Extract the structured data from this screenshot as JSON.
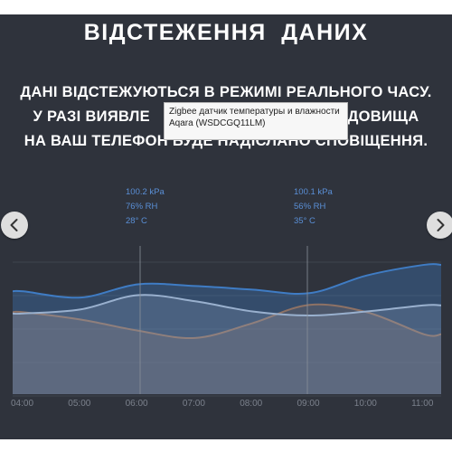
{
  "page": {
    "heading": "ВІДСТЕЖЕННЯ ДАНИХ",
    "description_lines": [
      "ДАНІ ВІДСТЕЖУЮТЬСЯ В РЕЖИМІ РЕАЛЬНОГО ЧАСУ.",
      "У РАЗІ ВИЯВЛЕ",
      "РЕДОВИЩА",
      "НА ВАШ ТЕЛЕФОН БУДЕ НАДІСЛАНО СПОВІЩЕННЯ."
    ]
  },
  "tooltip": {
    "line1": "Zigbee датчик температуры и влажности",
    "line2": "Aqara (WSDCGQ11LM)"
  },
  "readouts": [
    {
      "time": "06:00",
      "pressure": "100.2 kPa",
      "humidity": "76% RH",
      "temperature": "28° C"
    },
    {
      "time": "09:00",
      "pressure": "100.1 kPa",
      "humidity": "56% RH",
      "temperature": "35° C"
    }
  ],
  "carousel": {
    "prev_icon": "chevron-left-icon",
    "next_icon": "chevron-right-icon"
  },
  "colors": {
    "panel": "#2f333c",
    "pressure": "#3f7cc4",
    "humidity": "#c9cdd4",
    "temperature": "#b86d34",
    "accent_text": "#5a8fd6"
  },
  "chart_data": {
    "type": "area",
    "categories": [
      "04:00",
      "05:00",
      "06:00",
      "07:00",
      "08:00",
      "09:00",
      "10:00",
      "11:00"
    ],
    "grid": true,
    "series": [
      {
        "key": "pressure",
        "values": [
          100.12,
          100.05,
          100.2,
          100.18,
          100.14,
          100.1,
          100.3,
          100.42
        ]
      },
      {
        "key": "humidity",
        "values": [
          58,
          62,
          76,
          70,
          60,
          56,
          60,
          66
        ]
      },
      {
        "key": "temperature",
        "values": [
          33,
          31,
          28,
          26,
          30,
          35,
          33,
          27
        ]
      }
    ]
  }
}
